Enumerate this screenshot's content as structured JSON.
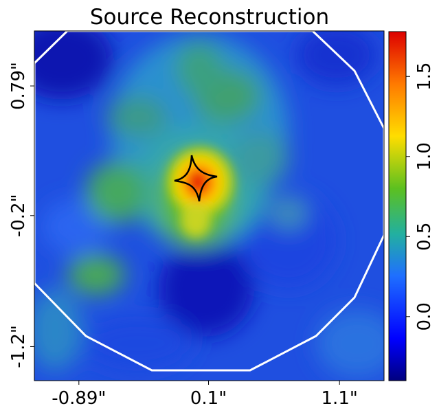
{
  "chart_data": {
    "type": "heatmap",
    "title": "Source Reconstruction",
    "xlabel": "",
    "ylabel": "",
    "x_ticks": [
      "-0.89\"",
      "0.1\"",
      "1.1\""
    ],
    "y_ticks": [
      "0.79\"",
      "-0.2\"",
      "-1.2\""
    ],
    "x_tick_values": [
      -0.89,
      0.1,
      1.1
    ],
    "y_tick_values": [
      0.79,
      -0.2,
      -1.2
    ],
    "xlim": [
      -1.23,
      1.44
    ],
    "ylim": [
      -1.46,
      1.21
    ],
    "colorbar": {
      "colormap": "jet",
      "range": [
        -0.4,
        1.78
      ],
      "ticks": [
        "0.0",
        "0.5",
        "1.0",
        "1.5"
      ],
      "tick_values": [
        0.0,
        0.5,
        1.0,
        1.5
      ]
    },
    "peak": {
      "x": 0.0,
      "y": 0.0,
      "value": 1.75
    },
    "grid": false,
    "overlays": [
      {
        "kind": "mask-border",
        "color": "#ffffff",
        "shape": "polygon"
      },
      {
        "kind": "caustic",
        "color": "#000000",
        "shape": "astroid"
      }
    ]
  },
  "colors": {
    "background": "#ffffff",
    "mask_border": "#ffffff",
    "caustic": "#000000",
    "axes": "#000000"
  }
}
